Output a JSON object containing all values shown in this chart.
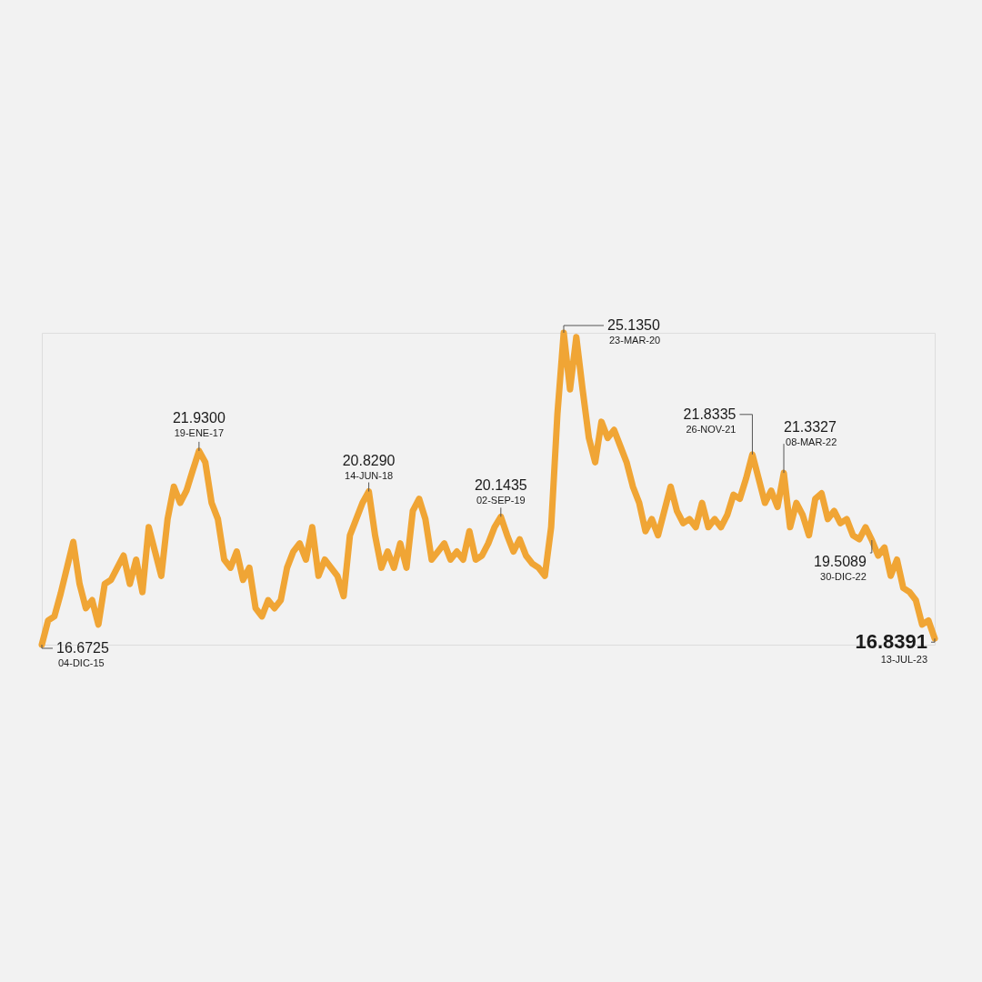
{
  "chart_data": {
    "type": "line",
    "tick_labels": false,
    "grid": false,
    "legend": false,
    "line_style": "solid",
    "marker": "none",
    "categories": [
      null,
      null,
      null,
      null,
      null,
      null,
      null,
      null,
      null,
      null,
      null,
      null,
      null,
      null,
      null,
      null,
      null,
      null,
      null,
      null,
      null,
      null,
      null,
      null,
      null,
      null,
      null,
      null,
      null,
      null,
      null,
      null,
      null,
      null,
      null,
      null,
      null,
      null,
      null,
      null,
      null,
      null,
      null,
      null,
      null,
      null,
      null,
      null,
      null,
      null,
      null,
      null,
      null,
      null,
      null,
      null,
      null,
      null,
      null,
      null,
      null,
      null,
      null,
      null,
      null,
      null,
      null,
      null,
      null,
      null,
      null,
      null,
      null,
      null,
      null,
      null,
      null,
      null,
      null,
      null,
      null,
      null,
      null,
      null,
      null,
      null,
      null,
      null,
      null,
      null,
      null,
      null,
      null,
      null,
      null,
      null,
      null,
      null,
      null,
      null,
      null,
      null,
      null,
      null,
      null,
      null,
      null,
      null,
      null,
      null,
      null,
      null,
      null,
      null,
      null,
      null,
      null,
      null,
      null,
      null,
      null,
      null,
      null,
      null,
      null,
      null,
      null,
      null,
      null,
      null,
      null,
      null,
      null,
      null,
      null,
      null,
      null,
      null,
      null,
      null,
      null,
      null,
      null
    ],
    "series": [
      {
        "color": "#f0a535",
        "values": [
          16.6725,
          17.33,
          17.44,
          18.06,
          18.76,
          19.46,
          18.32,
          17.66,
          17.88,
          17.22,
          18.32,
          18.43,
          18.76,
          19.09,
          18.32,
          18.98,
          18.1,
          19.86,
          19.2,
          18.54,
          20.08,
          20.96,
          20.52,
          20.85,
          21.4,
          21.93,
          21.62,
          20.52,
          20.08,
          18.98,
          18.76,
          19.2,
          18.43,
          18.76,
          17.66,
          17.44,
          17.88,
          17.66,
          17.88,
          18.76,
          19.2,
          19.42,
          18.98,
          19.86,
          18.54,
          18.98,
          18.76,
          18.54,
          17.99,
          19.64,
          20.08,
          20.52,
          20.829,
          19.64,
          18.76,
          19.2,
          18.76,
          19.42,
          18.76,
          20.3,
          20.63,
          20.08,
          18.98,
          19.2,
          19.42,
          18.98,
          19.2,
          18.98,
          19.75,
          18.98,
          19.09,
          19.42,
          19.86,
          20.1435,
          19.64,
          19.2,
          19.53,
          19.09,
          18.87,
          18.76,
          18.54,
          19.86,
          22.94,
          25.135,
          23.6,
          25.02,
          23.6,
          22.28,
          21.62,
          22.72,
          22.28,
          22.5,
          22.06,
          21.62,
          20.96,
          20.52,
          19.75,
          20.08,
          19.64,
          20.3,
          20.96,
          20.3,
          19.97,
          20.08,
          19.86,
          20.52,
          19.86,
          20.08,
          19.86,
          20.19,
          20.74,
          20.63,
          21.18,
          21.8335,
          21.18,
          20.52,
          20.85,
          20.41,
          21.3327,
          19.86,
          20.52,
          20.19,
          19.64,
          20.63,
          20.78,
          20.08,
          20.3,
          19.97,
          20.08,
          19.64,
          19.53,
          19.86,
          19.5089,
          19.09,
          19.31,
          18.54,
          18.98,
          18.21,
          18.1,
          17.88,
          17.22,
          17.33,
          16.8391
        ],
        "value_labels": [
          "16.6725",
          null,
          null,
          null,
          null,
          null,
          null,
          null,
          null,
          null,
          null,
          null,
          null,
          null,
          null,
          null,
          null,
          null,
          null,
          null,
          null,
          null,
          null,
          null,
          null,
          "21.9300",
          null,
          null,
          null,
          null,
          null,
          null,
          null,
          null,
          null,
          null,
          null,
          null,
          null,
          null,
          null,
          null,
          null,
          null,
          null,
          null,
          null,
          null,
          null,
          null,
          null,
          null,
          "20.8290",
          null,
          null,
          null,
          null,
          null,
          null,
          null,
          null,
          null,
          null,
          null,
          null,
          null,
          null,
          null,
          null,
          null,
          null,
          null,
          null,
          "20.1435",
          null,
          null,
          null,
          null,
          null,
          null,
          null,
          null,
          null,
          "25.1350",
          null,
          null,
          null,
          null,
          null,
          null,
          null,
          null,
          null,
          null,
          null,
          null,
          null,
          null,
          null,
          null,
          null,
          null,
          null,
          null,
          null,
          null,
          null,
          null,
          null,
          null,
          null,
          null,
          null,
          "21.8335",
          null,
          null,
          null,
          null,
          "21.3327",
          null,
          null,
          null,
          null,
          null,
          null,
          null,
          null,
          null,
          null,
          null,
          null,
          null,
          "19.5089",
          null,
          null,
          null,
          null,
          null,
          null,
          null,
          null,
          null,
          "16.8391"
        ]
      }
    ],
    "annotations": [
      "04-DIC-15",
      "19-ENE-17",
      "14-JUN-18",
      "02-SEP-19",
      "23-MAR-20",
      "26-NOV-21",
      "08-MAR-22",
      "30-DIC-22",
      "13-JUL-23"
    ]
  }
}
